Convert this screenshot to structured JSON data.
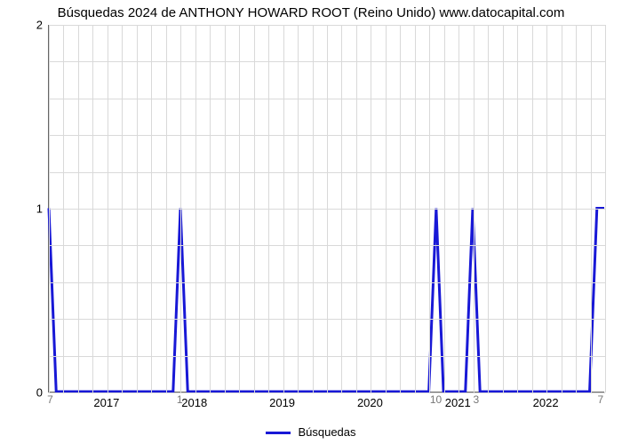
{
  "title": "Búsquedas 2024 de ANTHONY HOWARD ROOT (Reino Unido) www.datocapital.com",
  "chart": {
    "type": "line",
    "background_color": "#ffffff",
    "grid_color": "#d9d9d9",
    "axis_color": "#666666",
    "line_color": "#1818d6",
    "line_width": 3,
    "xlim": [
      0,
      76
    ],
    "ylim": [
      0,
      2
    ],
    "yticks": [
      0,
      1,
      2
    ],
    "xticks_major": [
      {
        "pos": 8,
        "label": "2017"
      },
      {
        "pos": 20,
        "label": "2018"
      },
      {
        "pos": 32,
        "label": "2019"
      },
      {
        "pos": 44,
        "label": "2020"
      },
      {
        "pos": 56,
        "label": "2021"
      },
      {
        "pos": 68,
        "label": "2022"
      }
    ],
    "xticks_minor": [
      {
        "pos": 0.3,
        "label": "7"
      },
      {
        "pos": 18,
        "label": "1"
      },
      {
        "pos": 53,
        "label": "10"
      },
      {
        "pos": 58.5,
        "label": "3"
      },
      {
        "pos": 75.5,
        "label": "7"
      }
    ],
    "grid_minor_x_step": 2,
    "grid_minor_y_count": 10,
    "data": [
      {
        "x": 0,
        "y": 1
      },
      {
        "x": 1,
        "y": 0
      },
      {
        "x": 17,
        "y": 0
      },
      {
        "x": 18,
        "y": 1
      },
      {
        "x": 19,
        "y": 0
      },
      {
        "x": 52,
        "y": 0
      },
      {
        "x": 53,
        "y": 1
      },
      {
        "x": 54,
        "y": 0
      },
      {
        "x": 57,
        "y": 0
      },
      {
        "x": 58,
        "y": 1
      },
      {
        "x": 59,
        "y": 0
      },
      {
        "x": 74,
        "y": 0
      },
      {
        "x": 75,
        "y": 1
      },
      {
        "x": 76,
        "y": 1
      }
    ]
  },
  "legend": {
    "label": "Búsquedas",
    "color": "#1818d6"
  }
}
